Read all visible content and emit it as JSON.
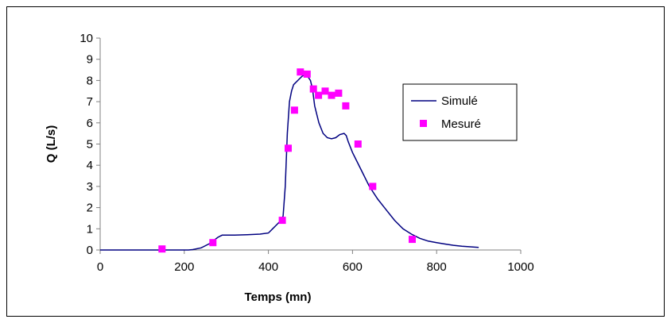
{
  "chart_data": {
    "type": "line",
    "xlabel": "Temps (mn)",
    "ylabel": "Q (L/s)",
    "xlim": [
      0,
      1000
    ],
    "ylim": [
      0,
      10
    ],
    "xticks": [
      0,
      200,
      400,
      600,
      800,
      1000
    ],
    "yticks": [
      0,
      1,
      2,
      3,
      4,
      5,
      6,
      7,
      8,
      9,
      10
    ],
    "grid": false,
    "legend_position": "right",
    "series": [
      {
        "name": "Simulé",
        "kind": "line",
        "color": "#000080",
        "x": [
          0,
          100,
          200,
          210,
          220,
          240,
          260,
          280,
          290,
          300,
          320,
          350,
          380,
          400,
          410,
          420,
          430,
          435,
          440,
          445,
          450,
          455,
          460,
          470,
          480,
          490,
          500,
          505,
          510,
          520,
          530,
          540,
          550,
          560,
          570,
          580,
          585,
          590,
          600,
          620,
          640,
          660,
          680,
          700,
          720,
          740,
          760,
          780,
          800,
          820,
          840,
          860,
          880,
          900
        ],
        "y": [
          0,
          0,
          0,
          0,
          0.02,
          0.1,
          0.3,
          0.6,
          0.7,
          0.7,
          0.7,
          0.72,
          0.75,
          0.8,
          1.0,
          1.2,
          1.4,
          1.6,
          3.0,
          5.5,
          7.0,
          7.5,
          7.8,
          8.0,
          8.2,
          8.3,
          8.0,
          7.6,
          6.8,
          6.0,
          5.5,
          5.3,
          5.25,
          5.3,
          5.45,
          5.5,
          5.4,
          5.1,
          4.6,
          3.8,
          3.0,
          2.4,
          1.9,
          1.4,
          1.0,
          0.75,
          0.55,
          0.42,
          0.35,
          0.28,
          0.22,
          0.18,
          0.15,
          0.12
        ]
      },
      {
        "name": "Mesuré",
        "kind": "scatter",
        "color": "#FF00FF",
        "x": [
          147,
          268,
          433,
          447,
          462,
          476,
          492,
          507,
          519,
          535,
          550,
          567,
          584,
          613,
          648,
          742
        ],
        "y": [
          0.05,
          0.35,
          1.4,
          4.8,
          6.6,
          8.4,
          8.3,
          7.6,
          7.3,
          7.5,
          7.3,
          7.4,
          6.8,
          5.0,
          3.0,
          0.5
        ]
      }
    ]
  }
}
